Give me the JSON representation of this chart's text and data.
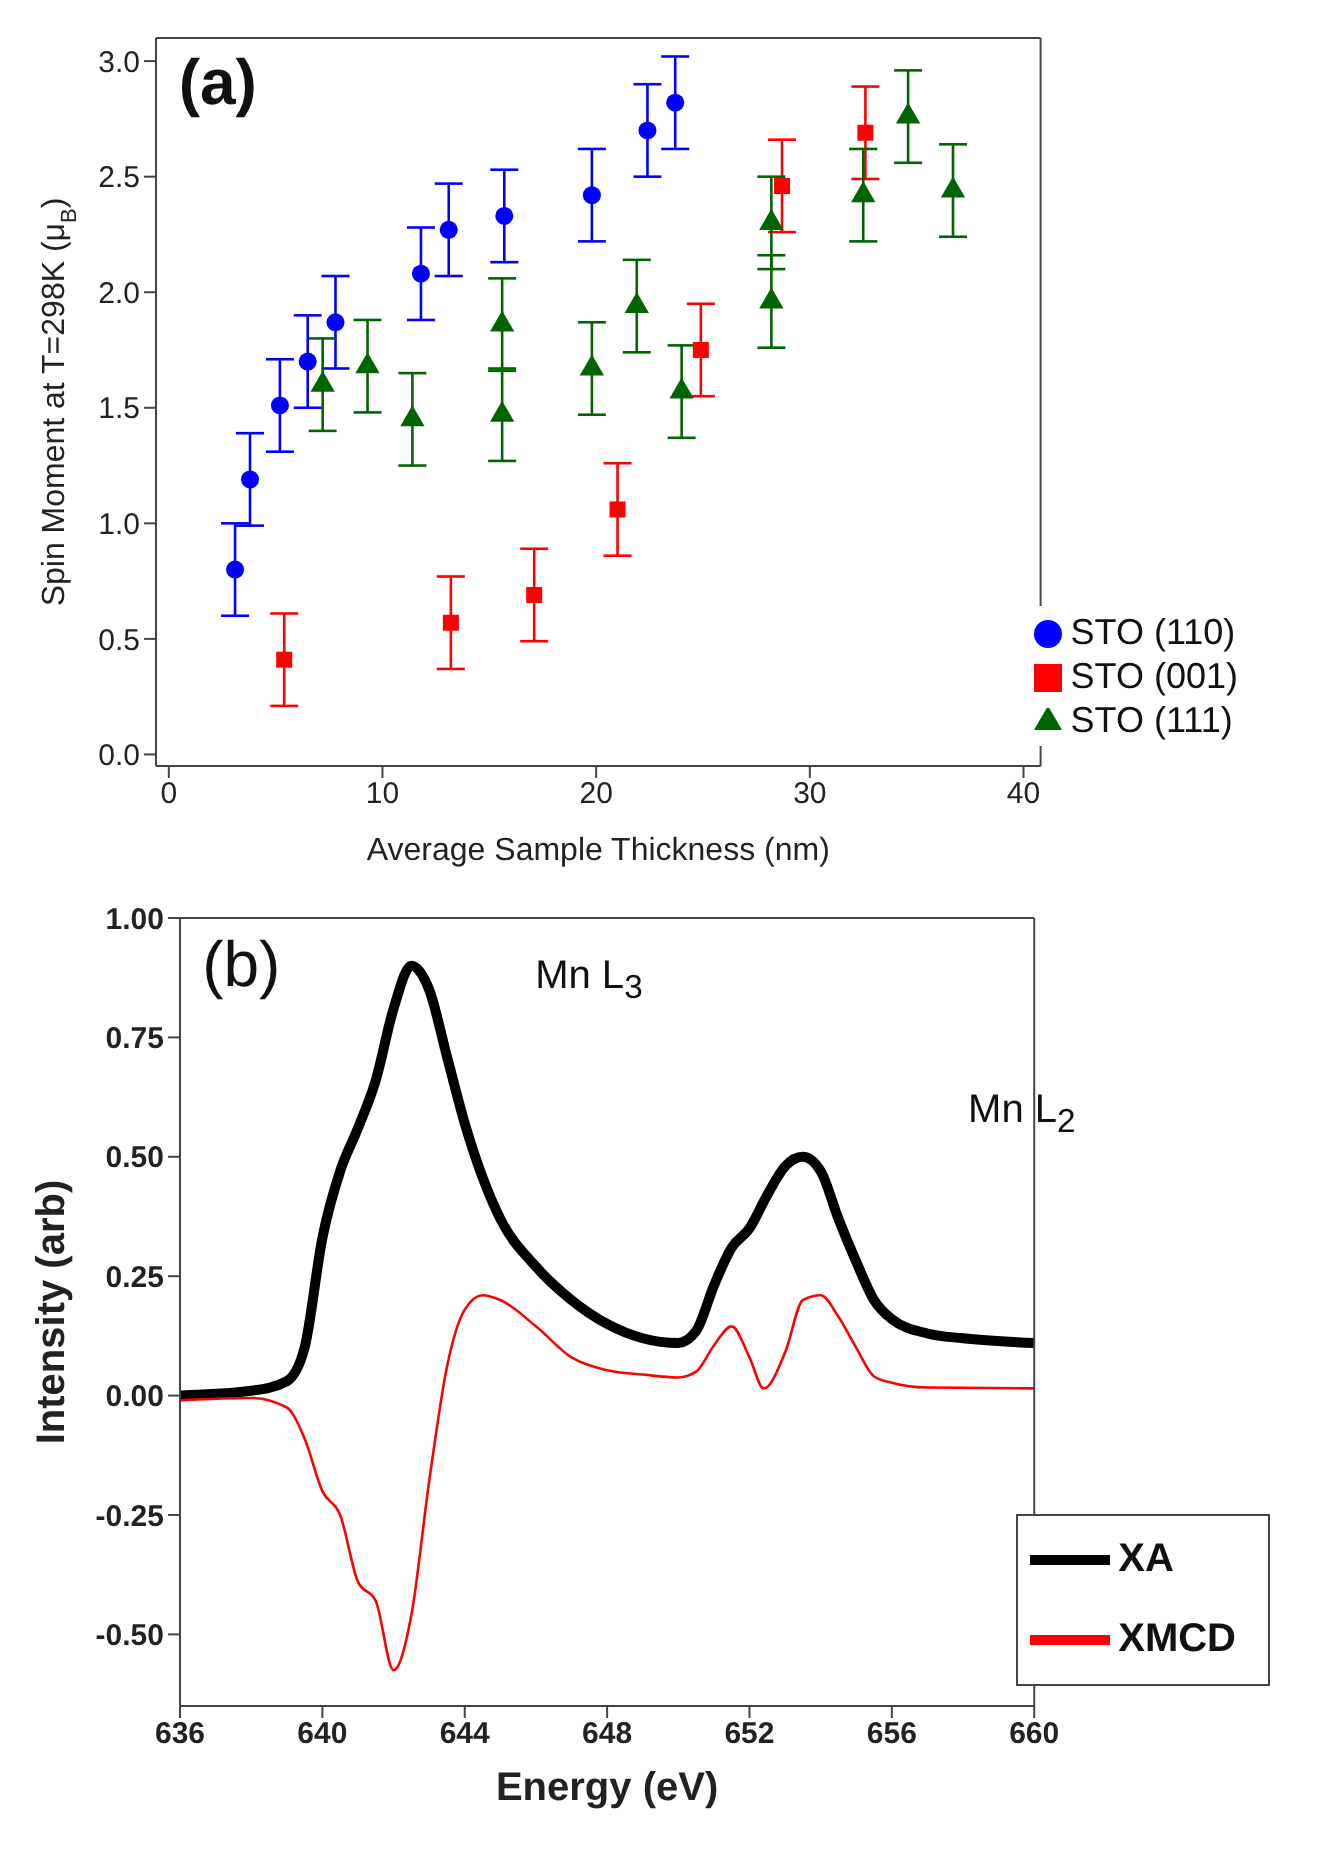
{
  "chart_data": [
    {
      "type": "scatter",
      "xlabel": "Average Sample Thickness (nm)",
      "ylabel": "Spin Moment at T=298K (μ$_{B}$)",
      "annotations": [
        "(a)"
      ],
      "xlim": [
        -0.6,
        40.8
      ],
      "ylim": [
        -0.05,
        3.1
      ],
      "xticks": [
        0,
        10,
        20,
        30,
        40
      ],
      "yticks": [
        {
          "value": 0,
          "label": "0.0"
        },
        0.5,
        {
          "value": 1,
          "label": "1.0"
        },
        1.5,
        {
          "value": 2,
          "label": "2.0"
        },
        2.5,
        {
          "value": 3,
          "label": "3.0"
        }
      ],
      "legend": "bottom right",
      "series": [
        {
          "name": "STO (110)",
          "color": "#0000ff",
          "marker": "circle",
          "x": [
            3.1,
            3.8,
            5.2,
            6.5,
            7.8,
            11.8,
            13.1,
            15.7,
            19.8,
            22.4,
            23.7
          ],
          "values": [
            0.8,
            1.19,
            1.51,
            1.7,
            1.87,
            2.08,
            2.27,
            2.33,
            2.42,
            2.7,
            2.82
          ],
          "errors": [
            0.2,
            0.2,
            0.2,
            0.2,
            0.2,
            0.2,
            0.2,
            0.2,
            0.2,
            0.2,
            0.2
          ]
        },
        {
          "name": "STO (001)",
          "color": "#ff0000",
          "marker": "square",
          "x": [
            5.4,
            13.2,
            17.1,
            21.0,
            24.9,
            28.7,
            32.6
          ],
          "values": [
            0.41,
            0.57,
            0.69,
            1.06,
            1.75,
            2.46,
            2.69
          ],
          "errors": [
            0.2,
            0.2,
            0.2,
            0.2,
            0.2,
            0.2,
            0.2
          ]
        },
        {
          "name": "STO (111)",
          "color": "#006400",
          "marker": "triangle",
          "x": [
            7.2,
            9.3,
            11.4,
            15.6,
            15.6,
            19.8,
            21.9,
            24.0,
            28.2,
            28.2,
            32.5,
            34.6,
            36.7
          ],
          "values": [
            1.6,
            1.68,
            1.45,
            1.86,
            1.47,
            1.67,
            1.94,
            1.57,
            2.3,
            1.96,
            2.42,
            2.76,
            2.44
          ],
          "errors": [
            0.2,
            0.2,
            0.2,
            0.2,
            0.2,
            0.2,
            0.2,
            0.2,
            0.2,
            0.2,
            0.2,
            0.2,
            0.2
          ]
        }
      ]
    },
    {
      "type": "line",
      "xlabel": "Energy (eV)",
      "ylabel": "Intensity (arb)",
      "annotations": [
        "(b)",
        "Mn L$_{3}$",
        "Mn L$_{2}$"
      ],
      "xlim": [
        636,
        660
      ],
      "ylim": [
        -0.65,
        1.0
      ],
      "xticks": [
        636,
        640,
        644,
        648,
        652,
        656,
        660
      ],
      "yticks": [
        {
          "value": -0.5,
          "label": "-0.50"
        },
        -0.25,
        {
          "value": 0,
          "label": "0.00"
        },
        0.25,
        {
          "value": 0.5,
          "label": "0.50"
        },
        0.75,
        {
          "value": 1,
          "label": "1.00"
        }
      ],
      "legend": "bottom right",
      "marker": "none",
      "series": [
        {
          "name": "XA",
          "color": "#000000",
          "x": [
            636,
            638,
            639,
            639.5,
            640,
            640.5,
            641,
            641.5,
            642,
            642.5,
            643,
            643.5,
            644,
            645,
            646,
            647,
            648,
            649,
            650,
            650.5,
            651,
            651.5,
            652,
            652.5,
            653,
            653.5,
            654,
            654.5,
            655,
            655.5,
            656,
            657,
            658,
            660
          ],
          "values": [
            0,
            0.01,
            0.03,
            0.1,
            0.33,
            0.47,
            0.56,
            0.66,
            0.81,
            0.9,
            0.85,
            0.71,
            0.57,
            0.37,
            0.27,
            0.2,
            0.15,
            0.12,
            0.11,
            0.135,
            0.23,
            0.31,
            0.35,
            0.42,
            0.48,
            0.5,
            0.47,
            0.37,
            0.28,
            0.2,
            0.16,
            0.13,
            0.12,
            0.11
          ]
        },
        {
          "name": "XMCD",
          "color": "#ff0000",
          "x": [
            636,
            638,
            639,
            639.5,
            640,
            640.5,
            641,
            641.5,
            642,
            642.5,
            643,
            643.5,
            644,
            644.5,
            645,
            646,
            647,
            648,
            649,
            650,
            650.5,
            651,
            651.5,
            652,
            652.4,
            653,
            653.5,
            654,
            654.5,
            655,
            655.5,
            656,
            657,
            660
          ],
          "values": [
            -0.01,
            -0.005,
            -0.025,
            -0.09,
            -0.2,
            -0.25,
            -0.39,
            -0.43,
            -0.575,
            -0.46,
            -0.18,
            0.06,
            0.18,
            0.21,
            0.2,
            0.145,
            0.08,
            0.053,
            0.044,
            0.038,
            0.05,
            0.105,
            0.145,
            0.08,
            0.015,
            0.09,
            0.2,
            0.21,
            0.165,
            0.1,
            0.04,
            0.027,
            0.017,
            0.015
          ]
        }
      ]
    }
  ]
}
